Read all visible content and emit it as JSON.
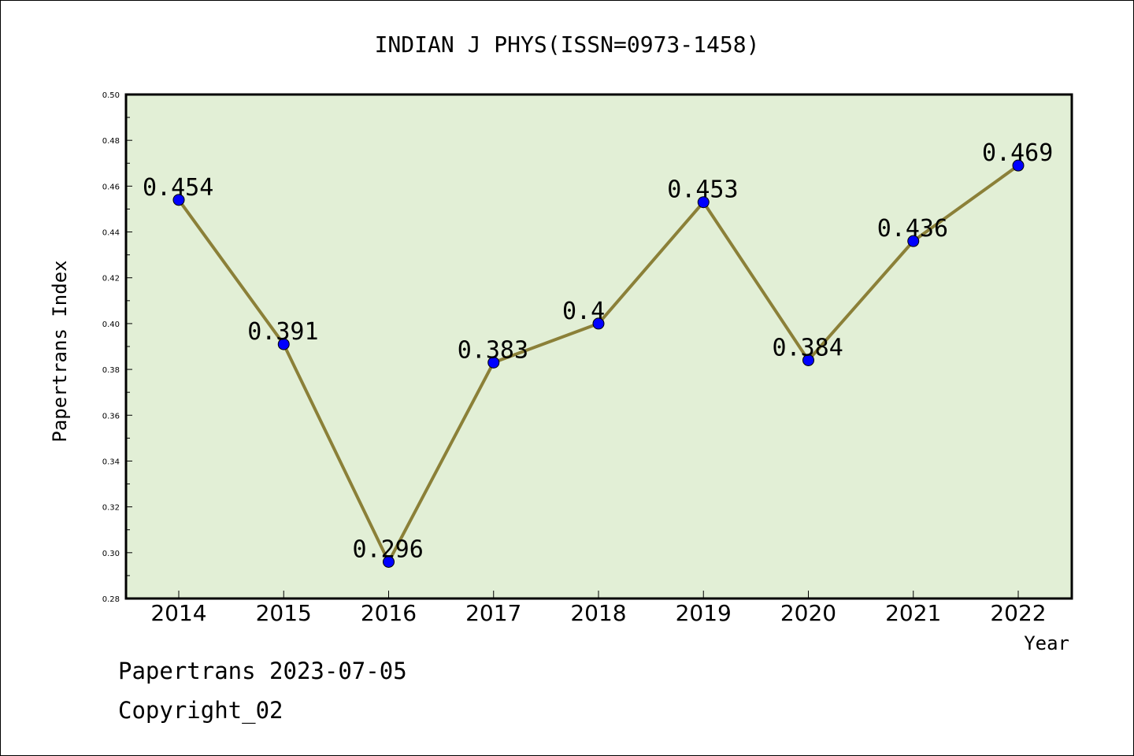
{
  "chart_data": {
    "type": "line",
    "title": "INDIAN J PHYS(ISSN=0973-1458)",
    "xlabel": "Year",
    "ylabel": "Papertrans Index",
    "categories": [
      "2014",
      "2015",
      "2016",
      "2017",
      "2018",
      "2019",
      "2020",
      "2021",
      "2022"
    ],
    "series": [
      {
        "values": [
          0.454,
          0.391,
          0.296,
          0.383,
          0.4,
          0.453,
          0.384,
          0.436,
          0.469
        ],
        "data_labels": [
          "0.454",
          "0.391",
          "0.296",
          "0.383",
          "0.4",
          "0.453",
          "0.384",
          "0.436",
          "0.469"
        ]
      }
    ],
    "ylim": [
      0.28,
      0.5
    ],
    "yticks": [
      "0.28",
      "0.30",
      "0.32",
      "0.34",
      "0.36",
      "0.38",
      "0.40",
      "0.42",
      "0.44",
      "0.46",
      "0.48",
      "0.50"
    ],
    "grid": false,
    "legend": "none",
    "colors": {
      "plot_background": "#e2efd6",
      "line": "#8b8038",
      "marker": "#0000ff"
    }
  },
  "footer": {
    "date_line": "Papertrans 2023-07-05",
    "copyright_line": "Copyright_02"
  }
}
